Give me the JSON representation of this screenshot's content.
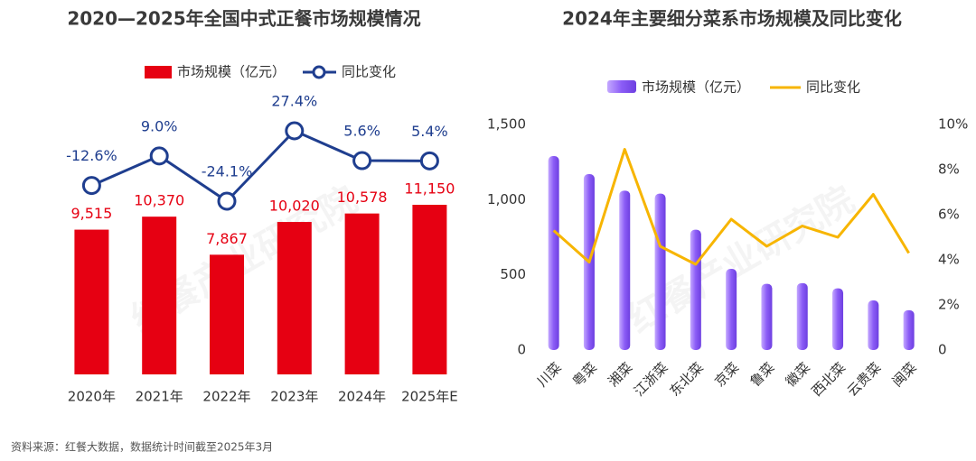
{
  "chart_data": [
    {
      "type": "combo",
      "title": "2020—2025年全国中式正餐市场规模情况",
      "categories": [
        "2020年",
        "2021年",
        "2022年",
        "2023年",
        "2024年",
        "2025年E"
      ],
      "series": [
        {
          "name": "市场规模（亿元）",
          "type": "bar",
          "color": "#e60012",
          "values": [
            9515,
            10370,
            7867,
            10020,
            10578,
            11150
          ],
          "value_labels": [
            "9,515",
            "10,370",
            "7,867",
            "10,020",
            "10,578",
            "11,150"
          ]
        },
        {
          "name": "同比变化",
          "type": "line",
          "color": "#1f3e8f",
          "values": [
            -12.6,
            9.0,
            -24.1,
            27.4,
            5.6,
            5.4
          ],
          "value_labels": [
            "-12.6%",
            "9.0%",
            "-24.1%",
            "27.4%",
            "5.6%",
            "5.4%"
          ]
        }
      ]
    },
    {
      "type": "combo",
      "title": "2024年主要细分菜系市场规模及同比变化",
      "categories": [
        "川菜",
        "粤菜",
        "湘菜",
        "江浙菜",
        "东北菜",
        "京菜",
        "鲁菜",
        "徽菜",
        "西北菜",
        "云贵菜",
        "闽菜"
      ],
      "series": [
        {
          "name": "市场规模（亿元）",
          "type": "bar",
          "color": "#8b5cf6",
          "values": [
            1290,
            1170,
            1060,
            1040,
            800,
            540,
            440,
            445,
            410,
            330,
            265
          ]
        },
        {
          "name": "同比变化",
          "type": "line",
          "axis": "y2",
          "color": "#f7b500",
          "values": [
            5.3,
            3.9,
            8.9,
            4.6,
            3.8,
            5.8,
            4.6,
            5.5,
            5.0,
            6.9,
            4.3
          ]
        }
      ],
      "ylim": [
        0,
        1500
      ],
      "yticks": [
        0,
        500,
        {
          "value": 1000,
          "label": "1,000"
        },
        {
          "value": 1500,
          "label": "1,500"
        }
      ],
      "y2lim": [
        0,
        10
      ],
      "y2ticks": [
        0,
        {
          "value": 2,
          "label": "2%"
        },
        {
          "value": 4,
          "label": "4%"
        },
        {
          "value": 6,
          "label": "6%"
        },
        {
          "value": 8,
          "label": "8%"
        },
        {
          "value": 10,
          "label": "10%"
        }
      ]
    }
  ],
  "watermark": "红餐产业研究院",
  "source": "资料来源：红餐大数据，数据统计时间截至2025年3月"
}
